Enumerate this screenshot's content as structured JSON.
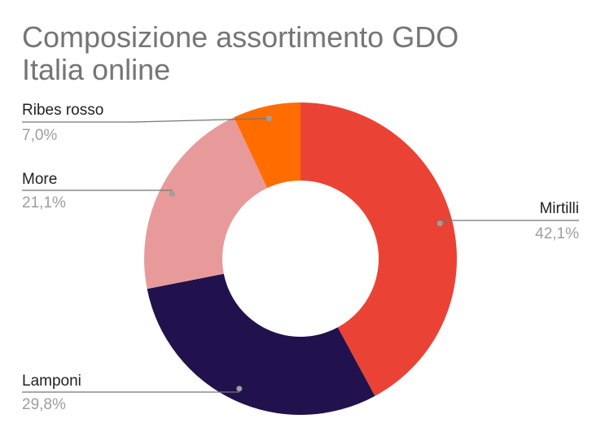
{
  "chart_data": {
    "type": "pie",
    "donut": true,
    "title_lines": [
      "Composizione assortimento GDO",
      "Italia online"
    ],
    "slices": [
      {
        "label": "Mirtilli",
        "value": 42.1,
        "display": "42,1%",
        "color": "#ea4335"
      },
      {
        "label": "Lamponi",
        "value": 29.8,
        "display": "29,8%",
        "color": "#21124d"
      },
      {
        "label": "More",
        "value": 21.1,
        "display": "21,1%",
        "color": "#e89a9a"
      },
      {
        "label": "Ribes rosso",
        "value": 7.0,
        "display": "7,0%",
        "color": "#ff6d01"
      }
    ],
    "legend": "none",
    "labels": "outside-with-leader-lines"
  }
}
